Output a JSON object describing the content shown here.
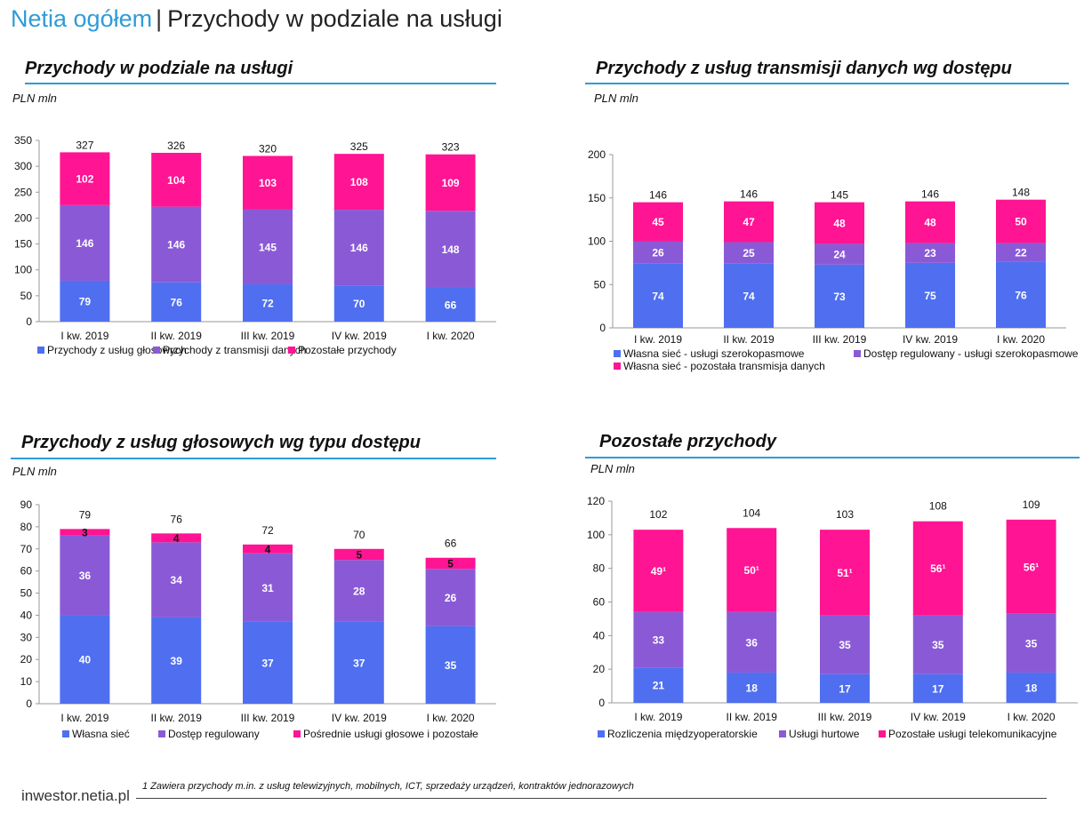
{
  "header": {
    "brand": "Netia ogółem",
    "separator": "|",
    "subtitle": "Przychody w podziale na usługi"
  },
  "footer": {
    "site": "inwestor.netia.pl",
    "footnote": "1  Zawiera przychody m.in. z usług telewizyjnych, mobilnych, ICT, sprzedaży urządzeń, kontraktów jednorazowych"
  },
  "colors": {
    "accent": "#2f9bd8",
    "blue": "#4f6ff0",
    "purple": "#8a5ad6",
    "pink": "#ff1493"
  },
  "chart_data": [
    {
      "type": "bar",
      "stacked": true,
      "title": "Przychody w podziale na usługi",
      "unit": "PLN mln",
      "categories": [
        "I kw. 2019",
        "II kw. 2019",
        "III kw. 2019",
        "IV kw. 2019",
        "I kw. 2020"
      ],
      "ylim": [
        0,
        350
      ],
      "yticks": [
        0,
        50,
        100,
        150,
        200,
        250,
        300,
        350
      ],
      "series": [
        {
          "name": "Przychody z usług głosowych",
          "color": "#4f6ff0",
          "values": [
            79,
            76,
            72,
            70,
            66
          ],
          "labels": [
            "79",
            "76",
            "72",
            "70",
            "66"
          ]
        },
        {
          "name": "Przychody z transmisji danych",
          "color": "#8a5ad6",
          "values": [
            146,
            146,
            145,
            146,
            148
          ],
          "labels": [
            "146",
            "146",
            "145",
            "146",
            "148"
          ]
        },
        {
          "name": "Pozostałe przychody",
          "color": "#ff1493",
          "values": [
            102,
            104,
            103,
            108,
            109
          ],
          "labels": [
            "102",
            "104",
            "103",
            "108",
            "109"
          ]
        }
      ],
      "totals": [
        "327",
        "326",
        "320",
        "325",
        "323"
      ]
    },
    {
      "type": "bar",
      "stacked": true,
      "title": "Przychody z usług transmisji danych wg dostępu",
      "unit": "PLN mln",
      "categories": [
        "I kw. 2019",
        "II kw. 2019",
        "III kw. 2019",
        "IV kw. 2019",
        "I kw. 2020"
      ],
      "ylim": [
        0,
        200
      ],
      "yticks": [
        0,
        50,
        100,
        150,
        200
      ],
      "series": [
        {
          "name": "Własna sieć  - usługi szerokopasmowe",
          "color": "#4f6ff0",
          "values": [
            74,
            74,
            73,
            75,
            76
          ],
          "labels": [
            "74",
            "74",
            "73",
            "75",
            "76"
          ]
        },
        {
          "name": "Dostęp regulowany - usługi szerokopasmowe",
          "color": "#8a5ad6",
          "values": [
            26,
            25,
            24,
            23,
            22
          ],
          "labels": [
            "26",
            "25",
            "24",
            "23",
            "22"
          ]
        },
        {
          "name": "Własna sieć - pozostała transmisja danych",
          "color": "#ff1493",
          "values": [
            45,
            47,
            48,
            48,
            50
          ],
          "labels": [
            "45",
            "47",
            "48",
            "48",
            "50"
          ]
        }
      ],
      "totals": [
        "146",
        "146",
        "145",
        "146",
        "148"
      ]
    },
    {
      "type": "bar",
      "stacked": true,
      "title": "Przychody z usług głosowych wg typu dostępu",
      "unit": "PLN mln",
      "categories": [
        "I kw. 2019",
        "II kw. 2019",
        "III kw. 2019",
        "IV kw. 2019",
        "I kw. 2020"
      ],
      "ylim": [
        0,
        90
      ],
      "yticks": [
        0,
        10,
        20,
        30,
        40,
        50,
        60,
        70,
        80,
        90
      ],
      "series": [
        {
          "name": "Własna sieć",
          "color": "#4f6ff0",
          "values": [
            40,
            39,
            37,
            37,
            35
          ],
          "labels": [
            "40",
            "39",
            "37",
            "37",
            "35"
          ]
        },
        {
          "name": "Dostęp regulowany",
          "color": "#8a5ad6",
          "values": [
            36,
            34,
            31,
            28,
            26
          ],
          "labels": [
            "36",
            "34",
            "31",
            "28",
            "26"
          ]
        },
        {
          "name": "Pośrednie usługi głosowe i pozostałe",
          "color": "#ff1493",
          "values": [
            3,
            4,
            4,
            5,
            5
          ],
          "labels": [
            "3",
            "4",
            "4",
            "5",
            "5"
          ]
        }
      ],
      "totals": [
        "79",
        "76",
        "72",
        "70",
        "66"
      ]
    },
    {
      "type": "bar",
      "stacked": true,
      "title": "Pozostałe przychody",
      "unit": "PLN mln",
      "categories": [
        "I kw. 2019",
        "II kw. 2019",
        "III kw. 2019",
        "IV kw. 2019",
        "I kw. 2020"
      ],
      "ylim": [
        0,
        120
      ],
      "yticks": [
        0,
        20,
        40,
        60,
        80,
        100,
        120
      ],
      "series": [
        {
          "name": "Rozliczenia międzyoperatorskie",
          "color": "#4f6ff0",
          "values": [
            21,
            18,
            17,
            17,
            18
          ],
          "labels": [
            "21",
            "18",
            "17",
            "17",
            "18"
          ]
        },
        {
          "name": "Usługi hurtowe",
          "color": "#8a5ad6",
          "values": [
            33,
            36,
            35,
            35,
            35
          ],
          "labels": [
            "33",
            "36",
            "35",
            "35",
            "35"
          ]
        },
        {
          "name": "Pozostałe usługi telekomunikacyjne",
          "color": "#ff1493",
          "values": [
            49,
            50,
            51,
            56,
            56
          ],
          "labels": [
            "49¹",
            "50¹",
            "51¹",
            "56¹",
            "56¹"
          ]
        }
      ],
      "totals": [
        "102",
        "104",
        "103",
        "108",
        "109"
      ]
    }
  ]
}
